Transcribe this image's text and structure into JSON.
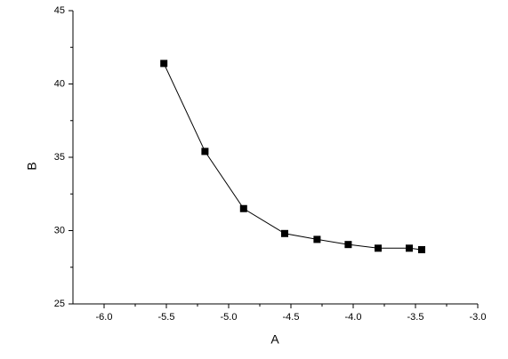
{
  "chart_data": {
    "type": "line",
    "x_label": "A",
    "y_label": "B",
    "series": [
      {
        "name": "B",
        "color": "#000000",
        "x": [
          -5.52,
          -5.19,
          -4.88,
          -4.55,
          -4.29,
          -4.04,
          -3.8,
          -3.55,
          -3.45
        ],
        "values": [
          41.4,
          35.4,
          31.5,
          29.8,
          29.4,
          29.05,
          28.8,
          28.8,
          28.7
        ]
      }
    ],
    "xlim": [
      -6.25,
      -3.0
    ],
    "xticks": [
      {
        "value": -6,
        "label": "-6.0"
      },
      {
        "value": -5.5,
        "label": "-5.5"
      },
      {
        "value": -5,
        "label": "-5.0"
      },
      {
        "value": -4.5,
        "label": "-4.5"
      },
      {
        "value": -4,
        "label": "-4.0"
      },
      {
        "value": -3.5,
        "label": "-3.5"
      },
      {
        "value": -3,
        "label": "-3.0"
      }
    ],
    "ylim": [
      25,
      45
    ],
    "yticks": [
      25,
      30,
      35,
      40,
      45
    ],
    "grid": false
  }
}
